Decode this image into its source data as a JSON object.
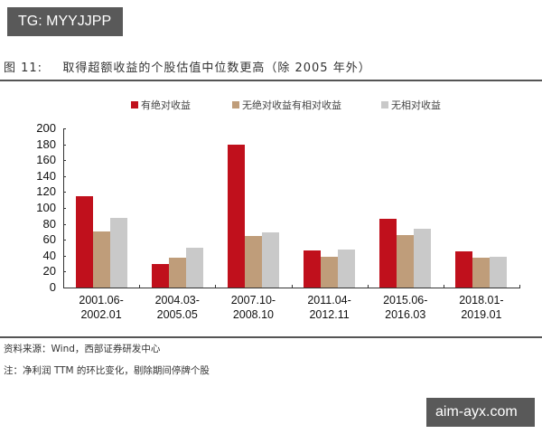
{
  "watermarks": {
    "top": "TG: MYYJJPP",
    "bottom": "aim-ayx.com"
  },
  "figure": {
    "label": "图 11:",
    "title": "取得超额收益的个股估值中位数更高（除 2005 年外）"
  },
  "footnotes": {
    "source": "资料来源：Wind，西部证券研发中心",
    "note": "注：净利润 TTM 的环比变化，剔除期间停牌个股"
  },
  "colors": {
    "abs": "#c0101c",
    "rel": "#bf9d7a",
    "none": "#c9c9c9"
  },
  "chart_data": {
    "type": "bar",
    "title": "取得超额收益的个股估值中位数更高（除 2005 年外）",
    "xlabel": "",
    "ylabel": "",
    "ylim": [
      0,
      200
    ],
    "yticks": [
      0,
      20,
      40,
      60,
      80,
      100,
      120,
      140,
      160,
      180,
      200
    ],
    "grid": false,
    "legend_position": "top",
    "categories": [
      "2001.06-2002.01",
      "2004.03-2005.05",
      "2007.10-2008.10",
      "2011.04-2012.11",
      "2015.06-2016.03",
      "2018.01-2019.01"
    ],
    "category_lines": [
      [
        "2001.06-",
        "2002.01"
      ],
      [
        "2004.03-",
        "2005.05"
      ],
      [
        "2007.10-",
        "2008.10"
      ],
      [
        "2011.04-",
        "2012.11"
      ],
      [
        "2015.06-",
        "2016.03"
      ],
      [
        "2018.01-",
        "2019.01"
      ]
    ],
    "series": [
      {
        "name": "有绝对收益",
        "color": "#c0101c",
        "values": [
          115,
          30,
          180,
          47,
          86,
          46
        ]
      },
      {
        "name": "无绝对收益有相对收益",
        "color": "#bf9d7a",
        "values": [
          70,
          38,
          65,
          39,
          66,
          37
        ]
      },
      {
        "name": "无相对收益",
        "color": "#c9c9c9",
        "values": [
          88,
          50,
          69,
          48,
          74,
          39
        ]
      }
    ]
  }
}
